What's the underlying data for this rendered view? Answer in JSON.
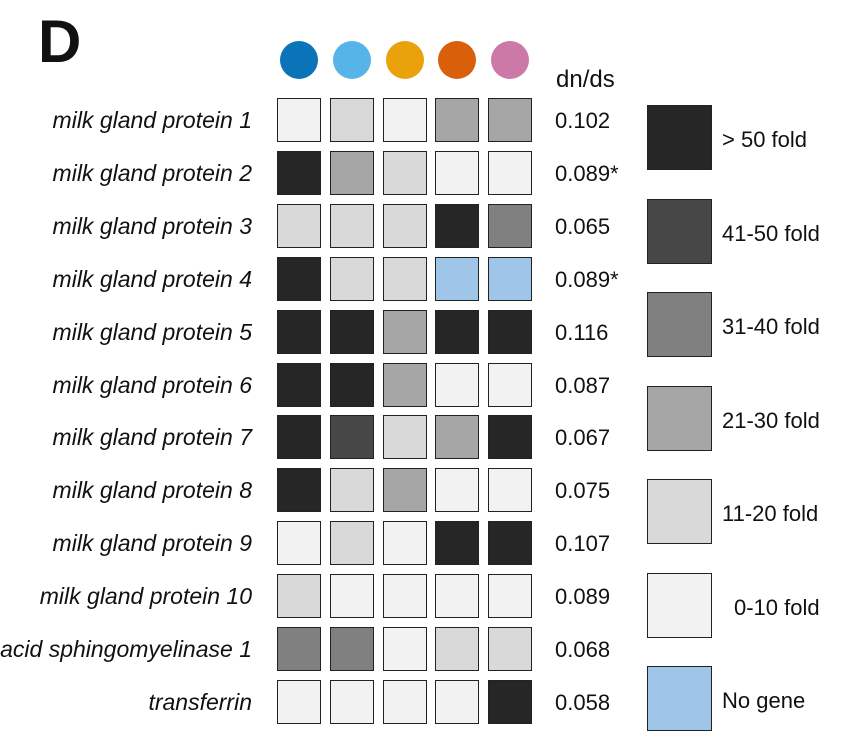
{
  "panel_label": "D",
  "chart_data": {
    "type": "heatmap",
    "column_colors": [
      "#0b74b8",
      "#56b4e9",
      "#e9a10c",
      "#d95f0b",
      "#cc79a7"
    ],
    "rows": [
      {
        "label": "milk gland protein 1",
        "values": [
          "0-10 fold",
          "11-20 fold",
          "0-10 fold",
          "21-30 fold",
          "21-30 fold"
        ],
        "dnds": "0.102"
      },
      {
        "label": "milk gland protein 2",
        "values": [
          "> 50 fold",
          "21-30 fold",
          "11-20 fold",
          "0-10 fold",
          "0-10 fold"
        ],
        "dnds": "0.089*"
      },
      {
        "label": "milk gland protein 3",
        "values": [
          "11-20 fold",
          "11-20 fold",
          "11-20 fold",
          "> 50 fold",
          "31-40 fold"
        ],
        "dnds": "0.065"
      },
      {
        "label": "milk gland protein 4",
        "values": [
          "> 50 fold",
          "11-20 fold",
          "11-20 fold",
          "No gene",
          "No gene"
        ],
        "dnds": "0.089*"
      },
      {
        "label": "milk gland protein 5",
        "values": [
          "> 50 fold",
          "> 50 fold",
          "21-30 fold",
          "> 50 fold",
          "> 50 fold"
        ],
        "dnds": "0.116"
      },
      {
        "label": "milk gland protein 6",
        "values": [
          "> 50 fold",
          "> 50 fold",
          "21-30 fold",
          "0-10 fold",
          "0-10 fold"
        ],
        "dnds": "0.087"
      },
      {
        "label": "milk gland protein 7",
        "values": [
          "> 50 fold",
          "41-50 fold",
          "11-20 fold",
          "21-30 fold",
          "> 50 fold"
        ],
        "dnds": "0.067"
      },
      {
        "label": "milk gland protein 8",
        "values": [
          "> 50 fold",
          "11-20 fold",
          "21-30 fold",
          "0-10 fold",
          "0-10 fold"
        ],
        "dnds": "0.075"
      },
      {
        "label": "milk gland protein 9",
        "values": [
          "0-10 fold",
          "11-20 fold",
          "0-10 fold",
          "> 50 fold",
          "> 50 fold"
        ],
        "dnds": "0.107"
      },
      {
        "label": "milk gland protein 10",
        "values": [
          "11-20 fold",
          "0-10 fold",
          "0-10 fold",
          "0-10 fold",
          "0-10 fold"
        ],
        "dnds": "0.089"
      },
      {
        "label": "acid sphingomyelinase 1",
        "values": [
          "31-40 fold",
          "31-40 fold",
          "0-10 fold",
          "11-20 fold",
          "11-20 fold"
        ],
        "dnds": "0.068"
      },
      {
        "label": "transferrin",
        "values": [
          "0-10 fold",
          "0-10 fold",
          "0-10 fold",
          "0-10 fold",
          "> 50 fold"
        ],
        "dnds": "0.058"
      }
    ],
    "dnds_label": "dn/ds",
    "legend": [
      {
        "label": "> 50 fold",
        "color": "#262626"
      },
      {
        "label": "41-50 fold",
        "color": "#474747"
      },
      {
        "label": "31-40 fold",
        "color": "#808080"
      },
      {
        "label": "21-30 fold",
        "color": "#a6a6a6"
      },
      {
        "label": "11-20 fold",
        "color": "#d9d9d9"
      },
      {
        "label": "0-10 fold",
        "color": "#f2f2f2"
      },
      {
        "label": "No gene",
        "color": "#9fc5e8"
      }
    ]
  }
}
